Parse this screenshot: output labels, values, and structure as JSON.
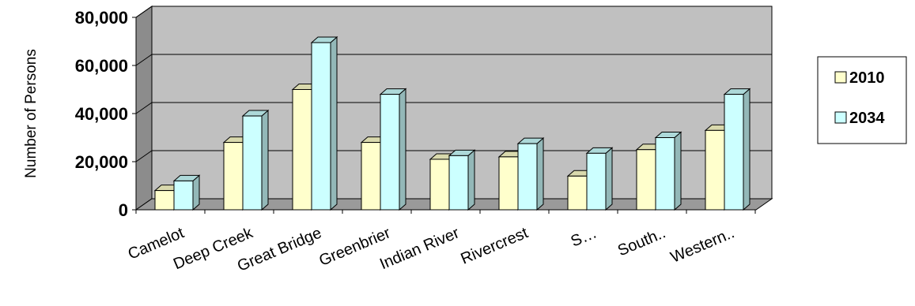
{
  "chart_data": {
    "type": "bar",
    "ylabel": "Number of Persons",
    "categories": [
      "Camelot",
      "Deep Creek",
      "Great Bridge",
      "Greenbrier",
      "Indian River",
      "Rivercrest",
      "S…",
      "South..",
      "Western.."
    ],
    "series": [
      {
        "name": "2010",
        "values": [
          8000,
          28000,
          50000,
          28000,
          21000,
          22000,
          14000,
          25000,
          33000
        ]
      },
      {
        "name": "2034",
        "values": [
          12000,
          39000,
          69500,
          48000,
          22500,
          27500,
          23500,
          30000,
          48000
        ]
      }
    ],
    "y_ticks": [
      "0",
      "20,000",
      "40,000",
      "60,000",
      "80,000"
    ],
    "ylim": [
      0,
      80000
    ],
    "grid": true,
    "legend_position": "right",
    "colors": {
      "series_2010": "#ffffcc",
      "series_2034": "#ccffff",
      "plot_back": "#c0c0c0",
      "plot_floor": "#9a9a9a",
      "plot_side": "#8c8c8c",
      "bar_outline": "#000000"
    }
  }
}
